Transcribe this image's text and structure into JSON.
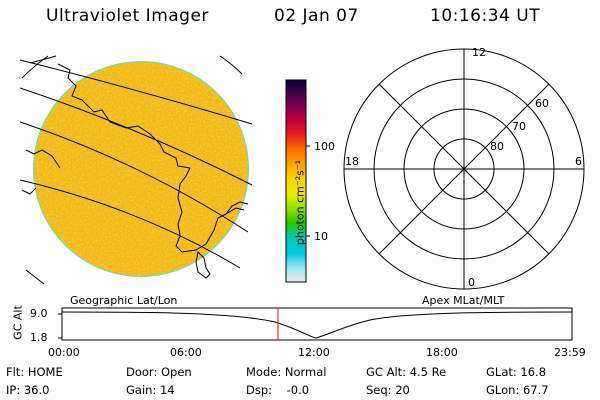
{
  "header": {
    "title": "Ultraviolet Imager",
    "date": "02 Jan 07",
    "time": "10:16:34 UT"
  },
  "colorbar": {
    "unit_label": "photon cm⁻²s⁻¹",
    "ticks": [
      "100",
      "10"
    ],
    "stops": [
      "#000033",
      "#3a0046",
      "#7a0050",
      "#c2003a",
      "#e61e1e",
      "#ff6a00",
      "#ffa000",
      "#ffd400",
      "#e4ee00",
      "#8ee000",
      "#20c800",
      "#00c8b0",
      "#00c8e6",
      "#9ce6ee",
      "#e6eef0"
    ]
  },
  "polar_plot": {
    "top_label": "12",
    "left_label": "18",
    "right_label": "6",
    "bottom_label": "0",
    "ring_labels": [
      "60",
      "70",
      "80"
    ]
  },
  "projection_labels": {
    "left": "Geographic Lat/Lon",
    "right": "Apex MLat/MLT"
  },
  "altitude_plot": {
    "axis_title": "GC Alt",
    "y_ticks": [
      "9.0",
      "1.8"
    ],
    "x_ticks": [
      "00:00",
      "06:00",
      "12:00",
      "18:00",
      "23:59"
    ],
    "marker_color": "#ff0000"
  },
  "status": {
    "flt": "Flt: HOME",
    "ip": "IP: 36.0",
    "door": "Door: Open",
    "gain": "Gain: 14",
    "mode": "Mode: Normal",
    "dsp": "Dsp:    -0.0",
    "gc_alt": "GC Alt: 4.5 Re",
    "seq": "Seq: 20",
    "glat": "GLat: 16.8",
    "glon": "GLon: 67.7"
  },
  "colors": {
    "disk_fill": "#f2b81a",
    "disk_rim": "#7fd98a"
  }
}
